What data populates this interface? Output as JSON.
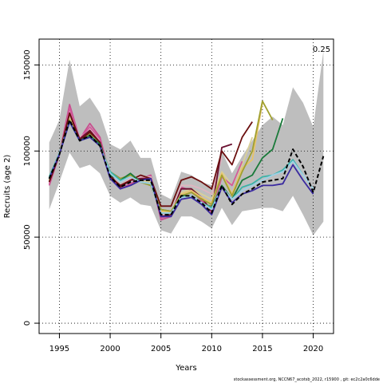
{
  "chart_data": {
    "type": "line",
    "title": "",
    "xlabel": "Years",
    "ylabel": "Recruits (age 2)",
    "xlim": [
      1993,
      2022
    ],
    "ylim": [
      -6000,
      165000
    ],
    "xticks": [
      1995,
      2000,
      2005,
      2010,
      2015,
      2020
    ],
    "yticks": [
      0,
      50000,
      100000,
      150000
    ],
    "grid": true,
    "annotation": "0.25",
    "band": {
      "x": [
        1994,
        1995,
        1996,
        1997,
        1998,
        1999,
        2000,
        2001,
        2002,
        2003,
        2004,
        2005,
        2006,
        2007,
        2008,
        2009,
        2010,
        2011,
        2012,
        2013,
        2014,
        2015,
        2016,
        2017,
        2018,
        2019,
        2020,
        2021
      ],
      "upper": [
        105000,
        118000,
        153000,
        126000,
        131000,
        122000,
        104000,
        101000,
        106000,
        96000,
        96000,
        75000,
        72000,
        88000,
        86000,
        82000,
        80000,
        100000,
        87000,
        97000,
        106000,
        115000,
        120000,
        115000,
        137000,
        128000,
        114000,
        158000
      ],
      "lower": [
        66000,
        82000,
        99000,
        90000,
        92000,
        87000,
        74000,
        70000,
        73000,
        69000,
        68000,
        54000,
        52000,
        62000,
        62000,
        59000,
        55000,
        67000,
        57000,
        65000,
        66000,
        67000,
        67000,
        65000,
        74000,
        63000,
        51000,
        59000
      ]
    },
    "series": [
      {
        "color": "#c84f8f",
        "x": [
          1994,
          1995,
          1996,
          1997,
          1998,
          1999,
          2000,
          2001,
          2002,
          2003,
          2004,
          2005,
          2006,
          2007,
          2008,
          2009,
          2010
        ],
        "values": [
          80000,
          98000,
          127000,
          107000,
          116000,
          108000,
          85000,
          78000,
          81000,
          84000,
          86000,
          60000,
          62000,
          79000,
          77000,
          71000,
          65000
        ]
      },
      {
        "color": "#8b8b3a",
        "x": [
          1994,
          1995,
          1996,
          1997,
          1998,
          1999,
          2000,
          2001,
          2002,
          2003,
          2004,
          2005,
          2006,
          2007,
          2008,
          2009,
          2010
        ],
        "values": [
          83000,
          98000,
          118000,
          106000,
          110000,
          104000,
          88000,
          84000,
          86000,
          82000,
          80000,
          66000,
          65000,
          73000,
          74000,
          69000,
          68000
        ]
      },
      {
        "color": "#e0b4c0",
        "x": [
          1994,
          1995,
          1996,
          1997,
          1998,
          1999,
          2000,
          2001,
          2002,
          2003,
          2004,
          2005,
          2006,
          2007,
          2008,
          2009,
          2010,
          2011
        ],
        "values": [
          82000,
          99000,
          123000,
          108000,
          113000,
          106000,
          86000,
          80000,
          84000,
          85000,
          85000,
          63000,
          64000,
          80000,
          80000,
          78000,
          75000,
          96000
        ]
      },
      {
        "color": "#d9d098",
        "x": [
          1994,
          1995,
          1996,
          1997,
          1998,
          1999,
          2000,
          2001,
          2002,
          2003,
          2004,
          2005,
          2006,
          2007,
          2008,
          2009,
          2010,
          2011,
          2012,
          2013,
          2014
        ],
        "values": [
          84000,
          99000,
          119000,
          107000,
          109000,
          105000,
          87000,
          82000,
          85000,
          83000,
          82000,
          65000,
          65000,
          76000,
          78000,
          75000,
          72000,
          88000,
          80000,
          92000,
          108000
        ]
      },
      {
        "color": "#d35a9c",
        "x": [
          1994,
          1995,
          1996,
          1997,
          1998,
          1999,
          2000,
          2001,
          2002,
          2003,
          2004,
          2005,
          2006,
          2007,
          2008,
          2009,
          2010,
          2011,
          2012,
          2013
        ],
        "values": [
          81000,
          98000,
          125000,
          107000,
          114000,
          107000,
          85000,
          79000,
          83000,
          84000,
          84000,
          61000,
          63000,
          78000,
          78000,
          72000,
          64000,
          85000,
          80000,
          94000
        ]
      },
      {
        "color": "#6a1030",
        "x": [
          1994,
          1995,
          1996,
          1997,
          1998,
          1999,
          2000,
          2001,
          2002,
          2003,
          2004,
          2005,
          2006,
          2007,
          2008,
          2009,
          2010,
          2011,
          2012
        ],
        "values": [
          82000,
          98000,
          122000,
          107000,
          112000,
          105000,
          86000,
          79000,
          83000,
          84000,
          84000,
          62000,
          63000,
          78000,
          78000,
          73000,
          65000,
          102000,
          104000
        ]
      },
      {
        "color": "#e8c46a",
        "x": [
          1994,
          1995,
          1996,
          1997,
          1998,
          1999,
          2000,
          2001,
          2002,
          2003,
          2004,
          2005,
          2006,
          2007,
          2008,
          2009,
          2010,
          2011,
          2012,
          2013,
          2014,
          2015
        ],
        "values": [
          84000,
          99000,
          118000,
          106000,
          109000,
          104000,
          87000,
          83000,
          86000,
          82000,
          81000,
          65000,
          65000,
          75000,
          77000,
          73000,
          70000,
          87000,
          75000,
          90000,
          95000,
          128000
        ]
      },
      {
        "color": "#a0a030",
        "x": [
          1994,
          1995,
          1996,
          1997,
          1998,
          1999,
          2000,
          2001,
          2002,
          2003,
          2004,
          2005,
          2006,
          2007,
          2008,
          2009,
          2010,
          2011,
          2012,
          2013,
          2014,
          2015,
          2016
        ],
        "values": [
          84000,
          99000,
          118000,
          106000,
          109000,
          104000,
          87000,
          84000,
          86000,
          82000,
          80000,
          66000,
          65000,
          74000,
          76000,
          72000,
          69000,
          86000,
          74000,
          88000,
          100000,
          129000,
          118000
        ]
      },
      {
        "color": "#6b0f0f",
        "x": [
          1994,
          1995,
          1996,
          1997,
          1998,
          1999,
          2000,
          2001,
          2002,
          2003,
          2004,
          2005,
          2006,
          2007,
          2008,
          2009,
          2010,
          2011,
          2012,
          2013,
          2014
        ],
        "values": [
          82000,
          98000,
          122000,
          106000,
          111000,
          105000,
          85000,
          80000,
          83000,
          86000,
          84000,
          68000,
          68000,
          83000,
          85000,
          82000,
          78000,
          100000,
          92000,
          108000,
          117000
        ]
      },
      {
        "color": "#1a7a3a",
        "x": [
          1994,
          1995,
          1996,
          1997,
          1998,
          1999,
          2000,
          2001,
          2002,
          2003,
          2004,
          2005,
          2006,
          2007,
          2008,
          2009,
          2010,
          2011,
          2012,
          2013,
          2014,
          2015,
          2016,
          2017
        ],
        "values": [
          84000,
          99000,
          117000,
          106000,
          109000,
          104000,
          86000,
          83000,
          87000,
          82000,
          81000,
          64000,
          64000,
          74000,
          74000,
          70000,
          67000,
          80000,
          72000,
          83000,
          86000,
          96000,
          101000,
          119000
        ]
      },
      {
        "color": "#39b3a8",
        "x": [
          1994,
          1995,
          1996,
          1997,
          1998,
          1999,
          2000,
          2001,
          2002,
          2003,
          2004,
          2005,
          2006,
          2007,
          2008,
          2009,
          2010,
          2011,
          2012,
          2013,
          2014,
          2015,
          2016,
          2017,
          2018,
          2019
        ],
        "values": [
          85000,
          99000,
          117000,
          106000,
          108000,
          103000,
          88000,
          83000,
          85000,
          82000,
          81000,
          64000,
          64000,
          73000,
          74000,
          70000,
          67000,
          79000,
          72000,
          79000,
          81000,
          85000,
          86000,
          89000,
          95000,
          86000
        ]
      },
      {
        "color": "#9ed0e6",
        "x": [
          1994,
          1995,
          1996,
          1997,
          1998,
          1999,
          2000,
          2001,
          2002,
          2003,
          2004,
          2005,
          2006,
          2007,
          2008,
          2009,
          2010,
          2011,
          2012,
          2013,
          2014,
          2015,
          2016,
          2017,
          2018,
          2019,
          2020
        ],
        "values": [
          84000,
          99000,
          117000,
          106000,
          108000,
          103000,
          87000,
          82000,
          85000,
          82000,
          81000,
          64000,
          64000,
          73000,
          74000,
          70000,
          66000,
          79000,
          72000,
          77000,
          80000,
          83000,
          86000,
          88000,
          94000,
          86000,
          78000
        ]
      },
      {
        "color": "#3a2aa0",
        "x": [
          1994,
          1995,
          1996,
          1997,
          1998,
          1999,
          2000,
          2001,
          2002,
          2003,
          2004,
          2005,
          2006,
          2007,
          2008,
          2009,
          2010,
          2011,
          2012,
          2013,
          2014,
          2015,
          2016,
          2017,
          2018,
          2019,
          2020
        ],
        "values": [
          84000,
          98000,
          117000,
          106000,
          108000,
          103000,
          84000,
          78000,
          80000,
          83000,
          84000,
          62000,
          62000,
          72000,
          73000,
          69000,
          63000,
          79000,
          70000,
          75000,
          77000,
          80000,
          80000,
          81000,
          92000,
          83000,
          75000
        ]
      },
      {
        "color": "#000000",
        "dashed": true,
        "x": [
          1994,
          1995,
          1996,
          1997,
          1998,
          1999,
          2000,
          2001,
          2002,
          2003,
          2004,
          2005,
          2006,
          2007,
          2008,
          2009,
          2010,
          2011,
          2012,
          2013,
          2014,
          2015,
          2016,
          2017,
          2018,
          2019,
          2020,
          2021
        ],
        "values": [
          84000,
          98000,
          118000,
          106000,
          109000,
          103000,
          85000,
          79000,
          82000,
          83000,
          83000,
          63000,
          63000,
          74000,
          74000,
          70000,
          64000,
          80000,
          69000,
          75000,
          78000,
          82000,
          83000,
          84000,
          101000,
          91000,
          76000,
          97000
        ]
      }
    ]
  },
  "footer": "stockassessment.org, NCCN67_acotsb_2022, r15900 , git: ec2c2a0c6dde"
}
